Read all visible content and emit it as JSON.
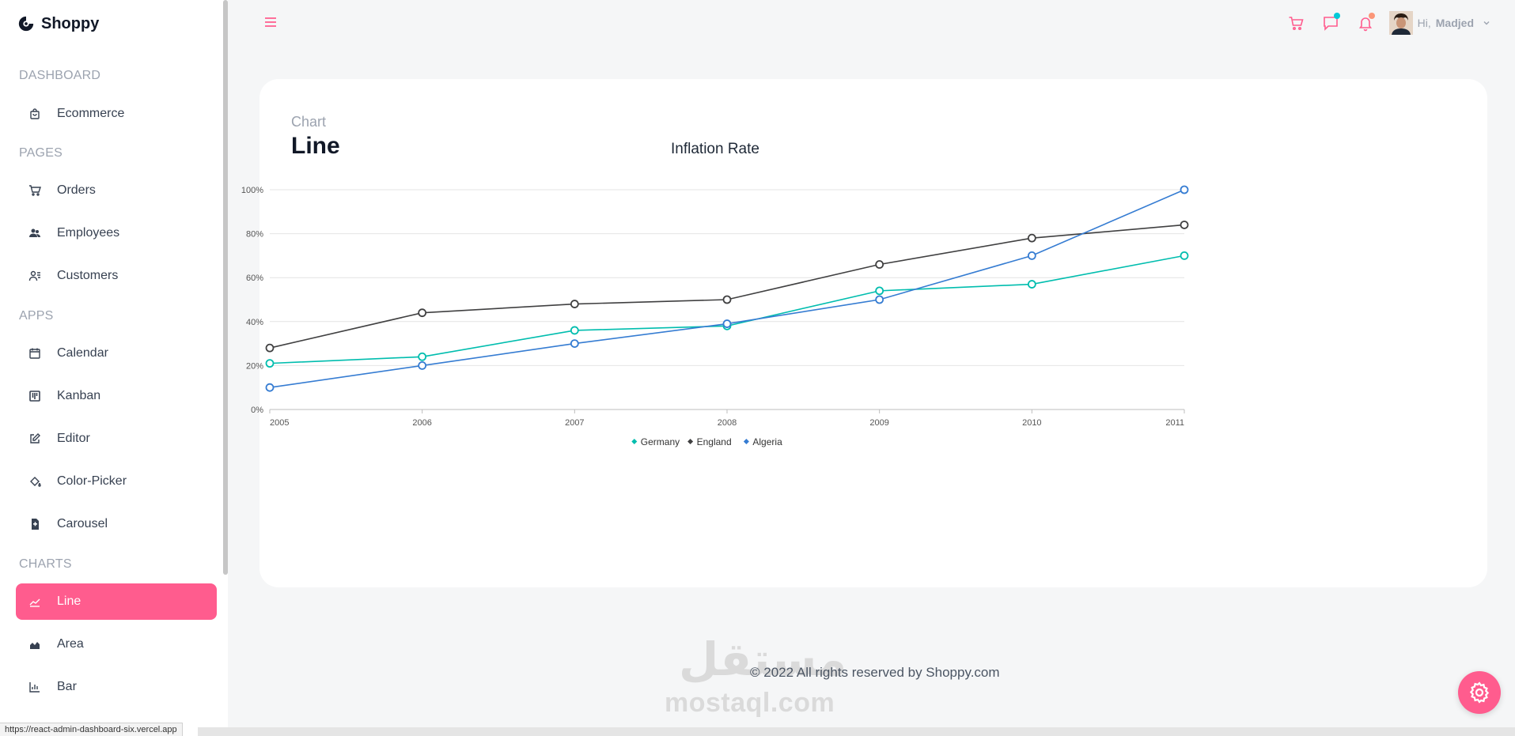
{
  "brand": {
    "name": "Shoppy"
  },
  "sidebar": {
    "sections": [
      {
        "title": "DASHBOARD",
        "items": [
          {
            "label": "Ecommerce",
            "icon": "shopping-bag-icon"
          }
        ]
      },
      {
        "title": "PAGES",
        "items": [
          {
            "label": "Orders",
            "icon": "cart-icon"
          },
          {
            "label": "Employees",
            "icon": "employees-icon"
          },
          {
            "label": "Customers",
            "icon": "customers-icon"
          }
        ]
      },
      {
        "title": "APPS",
        "items": [
          {
            "label": "Calendar",
            "icon": "calendar-icon"
          },
          {
            "label": "Kanban",
            "icon": "kanban-icon"
          },
          {
            "label": "Editor",
            "icon": "edit-icon"
          },
          {
            "label": "Color-Picker",
            "icon": "paint-bucket-icon"
          },
          {
            "label": "Carousel",
            "icon": "carousel-icon"
          }
        ]
      },
      {
        "title": "CHARTS",
        "items": [
          {
            "label": "Line",
            "icon": "line-chart-icon",
            "active": true
          },
          {
            "label": "Area",
            "icon": "area-chart-icon"
          },
          {
            "label": "Bar",
            "icon": "bar-chart-icon"
          }
        ]
      }
    ]
  },
  "topbar": {
    "greeting": "Hi,",
    "user_name": "Madjed",
    "chat_dot_color": "#03c9d7",
    "bell_dot_color": "#fb9678"
  },
  "page": {
    "subtitle": "Chart",
    "title": "Line"
  },
  "chart_data": {
    "type": "line",
    "title": "Inflation Rate",
    "x": [
      "2005",
      "2006",
      "2007",
      "2008",
      "2009",
      "2010",
      "2011"
    ],
    "ylim": [
      0,
      100
    ],
    "y_ticks": [
      "0%",
      "20%",
      "40%",
      "60%",
      "80%",
      "100%"
    ],
    "grid": true,
    "legend_position": "bottom",
    "series": [
      {
        "name": "Germany",
        "color": "#00bdae",
        "values": [
          21,
          24,
          36,
          38,
          54,
          57,
          70
        ]
      },
      {
        "name": "England",
        "color": "#404041",
        "values": [
          28,
          44,
          48,
          50,
          66,
          78,
          84
        ]
      },
      {
        "name": "Algeria",
        "color": "#357cd2",
        "values": [
          10,
          20,
          30,
          39,
          50,
          70,
          100
        ]
      }
    ]
  },
  "footer": {
    "text": "© 2022 All rights reserved by Shoppy.com"
  },
  "watermark": {
    "arabic": "مستقل",
    "latin": "mostaql.com"
  },
  "status_bar": {
    "url": "https://react-admin-dashboard-six.vercel.app"
  },
  "colors": {
    "accent": "#ff5c8e"
  }
}
